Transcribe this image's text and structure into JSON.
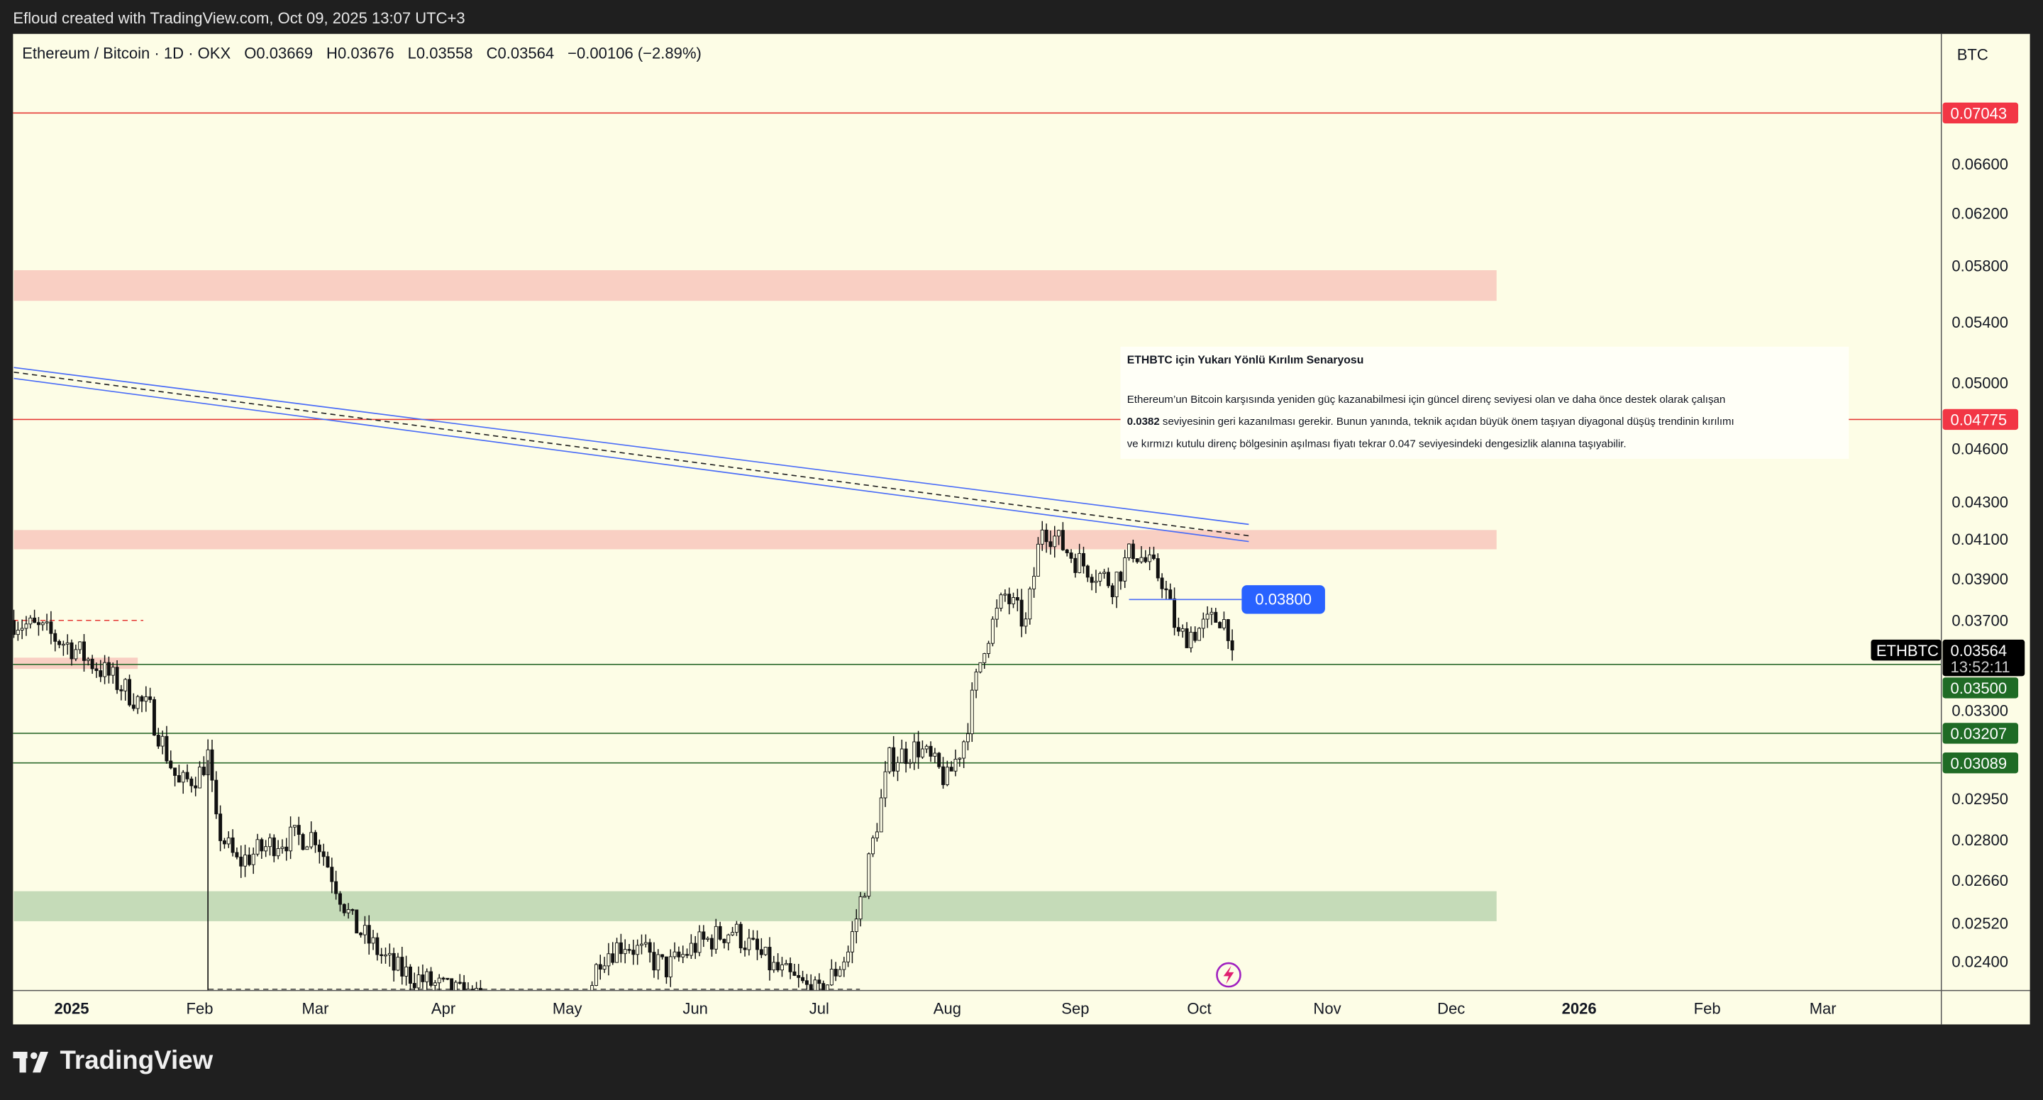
{
  "header": {
    "credit": "Efloud created with TradingView.com, Oct 09, 2025 13:07 UTC+3"
  },
  "legend": {
    "symbol": "Ethereum / Bitcoin · 1D · OKX",
    "open": "O0.03669",
    "high": "H0.03676",
    "low": "L0.03558",
    "close": "C0.03564",
    "change": "−0.00106 (−2.89%)"
  },
  "currency": "BTC",
  "note": {
    "title": "ETHBTC için Yukarı Yönlü Kırılım Senaryosu",
    "line1": "Ethereum’un Bitcoin karşısında yeniden güç kazanabilmesi için güncel direnç seviyesi olan ve daha önce destek olarak çalışan",
    "line2_bold": "0.0382",
    "line2": " seviyesinin geri kazanılması gerekir. Bunun yanında, teknik açıdan büyük önem taşıyan diyagonal düşüş trendinin kırılımı",
    "line3": "ve kırmızı kutulu direnç bölgesinin aşılması fiyatı tekrar 0.047 seviyesindeki dengesizlik alanına taşıyabilir."
  },
  "price_label": "0.03800",
  "last_price": {
    "symbol": "ETHBTC",
    "price": "0.03564",
    "countdown": "13:52:11"
  },
  "logo": "TradingView",
  "colors": {
    "background": "#fdfde6",
    "red_line": "#e53935",
    "green_line": "#2e6b2e",
    "red_zone": "#f9cfc3",
    "green_zone": "#c5dbb8",
    "trend_blue": "#4a6cf7",
    "label_blue": "#2962ff"
  },
  "chart_data": {
    "type": "candlestick",
    "scale": "log",
    "y_ticks": [
      "0.06600",
      "0.06200",
      "0.05800",
      "0.05400",
      "0.05000",
      "0.04600",
      "0.04300",
      "0.04100",
      "0.03900",
      "0.03700",
      "0.03300",
      "0.02950",
      "0.02800",
      "0.02660",
      "0.02520",
      "0.02400"
    ],
    "x_ticks": [
      {
        "label": "2025",
        "date": "2025-01-01",
        "bold": true
      },
      {
        "label": "Feb",
        "date": "2025-02-01"
      },
      {
        "label": "Mar",
        "date": "2025-03-01"
      },
      {
        "label": "Apr",
        "date": "2025-04-01"
      },
      {
        "label": "May",
        "date": "2025-05-01"
      },
      {
        "label": "Jun",
        "date": "2025-06-01"
      },
      {
        "label": "Jul",
        "date": "2025-07-01"
      },
      {
        "label": "Aug",
        "date": "2025-08-01"
      },
      {
        "label": "Sep",
        "date": "2025-09-01"
      },
      {
        "label": "Oct",
        "date": "2025-10-01"
      },
      {
        "label": "Nov",
        "date": "2025-11-01"
      },
      {
        "label": "Dec",
        "date": "2025-12-01"
      },
      {
        "label": "2026",
        "date": "2026-01-01",
        "bold": true
      },
      {
        "label": "Feb",
        "date": "2026-02-01"
      },
      {
        "label": "Mar",
        "date": "2026-03-01"
      }
    ],
    "close_path": [
      [
        "2024-12-18",
        0.037
      ],
      [
        "2024-12-25",
        0.0365
      ],
      [
        "2025-01-01",
        0.0358
      ],
      [
        "2025-01-10",
        0.0345
      ],
      [
        "2025-01-20",
        0.033
      ],
      [
        "2025-01-27",
        0.03
      ],
      [
        "2025-02-01",
        0.0305
      ],
      [
        "2025-02-03",
        0.0312
      ],
      [
        "2025-02-05",
        0.0285
      ],
      [
        "2025-02-10",
        0.0272
      ],
      [
        "2025-02-20",
        0.028
      ],
      [
        "2025-03-01",
        0.0282
      ],
      [
        "2025-03-10",
        0.0252
      ],
      [
        "2025-03-20",
        0.0238
      ],
      [
        "2025-04-01",
        0.0232
      ],
      [
        "2025-04-10",
        0.0228
      ],
      [
        "2025-04-20",
        0.0222
      ],
      [
        "2025-05-01",
        0.0212
      ],
      [
        "2025-05-09",
        0.0242
      ],
      [
        "2025-05-15",
        0.0246
      ],
      [
        "2025-05-25",
        0.0238
      ],
      [
        "2025-06-01",
        0.0245
      ],
      [
        "2025-06-10",
        0.025
      ],
      [
        "2025-06-20",
        0.0238
      ],
      [
        "2025-07-01",
        0.023
      ],
      [
        "2025-07-08",
        0.0243
      ],
      [
        "2025-07-12",
        0.0265
      ],
      [
        "2025-07-18",
        0.031
      ],
      [
        "2025-07-25",
        0.0315
      ],
      [
        "2025-08-01",
        0.0302
      ],
      [
        "2025-08-05",
        0.0318
      ],
      [
        "2025-08-10",
        0.036
      ],
      [
        "2025-08-15",
        0.0382
      ],
      [
        "2025-08-20",
        0.0368
      ],
      [
        "2025-08-24",
        0.0418
      ],
      [
        "2025-09-01",
        0.04
      ],
      [
        "2025-09-10",
        0.0388
      ],
      [
        "2025-09-15",
        0.0405
      ],
      [
        "2025-09-22",
        0.039
      ],
      [
        "2025-09-26",
        0.0362
      ],
      [
        "2025-10-01",
        0.0366
      ],
      [
        "2025-10-06",
        0.0372
      ],
      [
        "2025-10-08",
        0.0367
      ],
      [
        "2025-10-09",
        0.03564
      ]
    ],
    "horizontal_lines": [
      {
        "price": 0.07043,
        "label": "0.07043",
        "color": "red"
      },
      {
        "price": 0.04775,
        "label": "0.04775",
        "color": "red"
      },
      {
        "price": 0.035,
        "label": "0.03500",
        "color": "green"
      },
      {
        "price": 0.03207,
        "label": "0.03207",
        "color": "green"
      },
      {
        "price": 0.03089,
        "label": "0.03089",
        "color": "green"
      }
    ],
    "zones": [
      {
        "top": 0.0577,
        "bottom": 0.0555,
        "from": "2024-12-18",
        "to": "2025-12-12",
        "color": "red"
      },
      {
        "top": 0.0415,
        "bottom": 0.0405,
        "from": "2024-12-18",
        "to": "2025-12-12",
        "color": "red"
      },
      {
        "top": 0.02625,
        "bottom": 0.02527,
        "from": "2024-12-18",
        "to": "2025-12-12",
        "color": "green"
      },
      {
        "top": 0.0353,
        "bottom": 0.0348,
        "from": "2024-12-18",
        "to": "2025-01-17",
        "color": "red"
      }
    ],
    "trendlines": [
      {
        "from": [
          "2024-12-18",
          0.051
        ],
        "to": [
          "2025-10-13",
          0.0418
        ],
        "style": "blue"
      },
      {
        "from": [
          "2024-12-18",
          0.0503
        ],
        "to": [
          "2025-10-13",
          0.0409
        ],
        "style": "blue"
      },
      {
        "from": [
          "2024-12-18",
          0.0507
        ],
        "to": [
          "2025-10-13",
          0.0412
        ],
        "style": "dashed"
      }
    ],
    "level_0380": {
      "price": 0.038,
      "from": "2025-09-14",
      "to": "2025-10-13"
    }
  }
}
